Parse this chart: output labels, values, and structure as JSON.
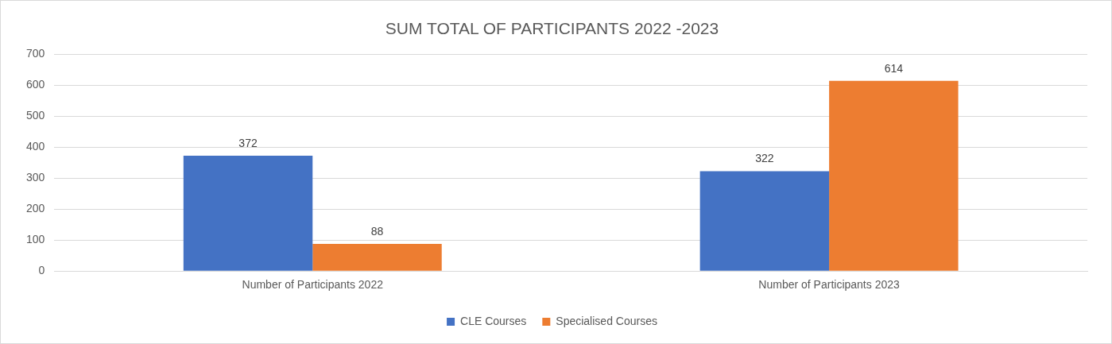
{
  "chart_data": {
    "type": "bar",
    "title": "SUM TOTAL OF PARTICIPANTS 2022 -2023",
    "categories": [
      "Number of Participants 2022",
      "Number of Participants 2023"
    ],
    "series": [
      {
        "name": "CLE Courses",
        "color": "#4472c4",
        "values": [
          372,
          322
        ]
      },
      {
        "name": "Specialised Courses",
        "color": "#ed7d31",
        "values": [
          88,
          614
        ]
      }
    ],
    "ylim": [
      0,
      700
    ],
    "yticks": [
      0,
      100,
      200,
      300,
      400,
      500,
      600,
      700
    ],
    "grid": "y",
    "legend": "bottom",
    "data_labels": true
  }
}
